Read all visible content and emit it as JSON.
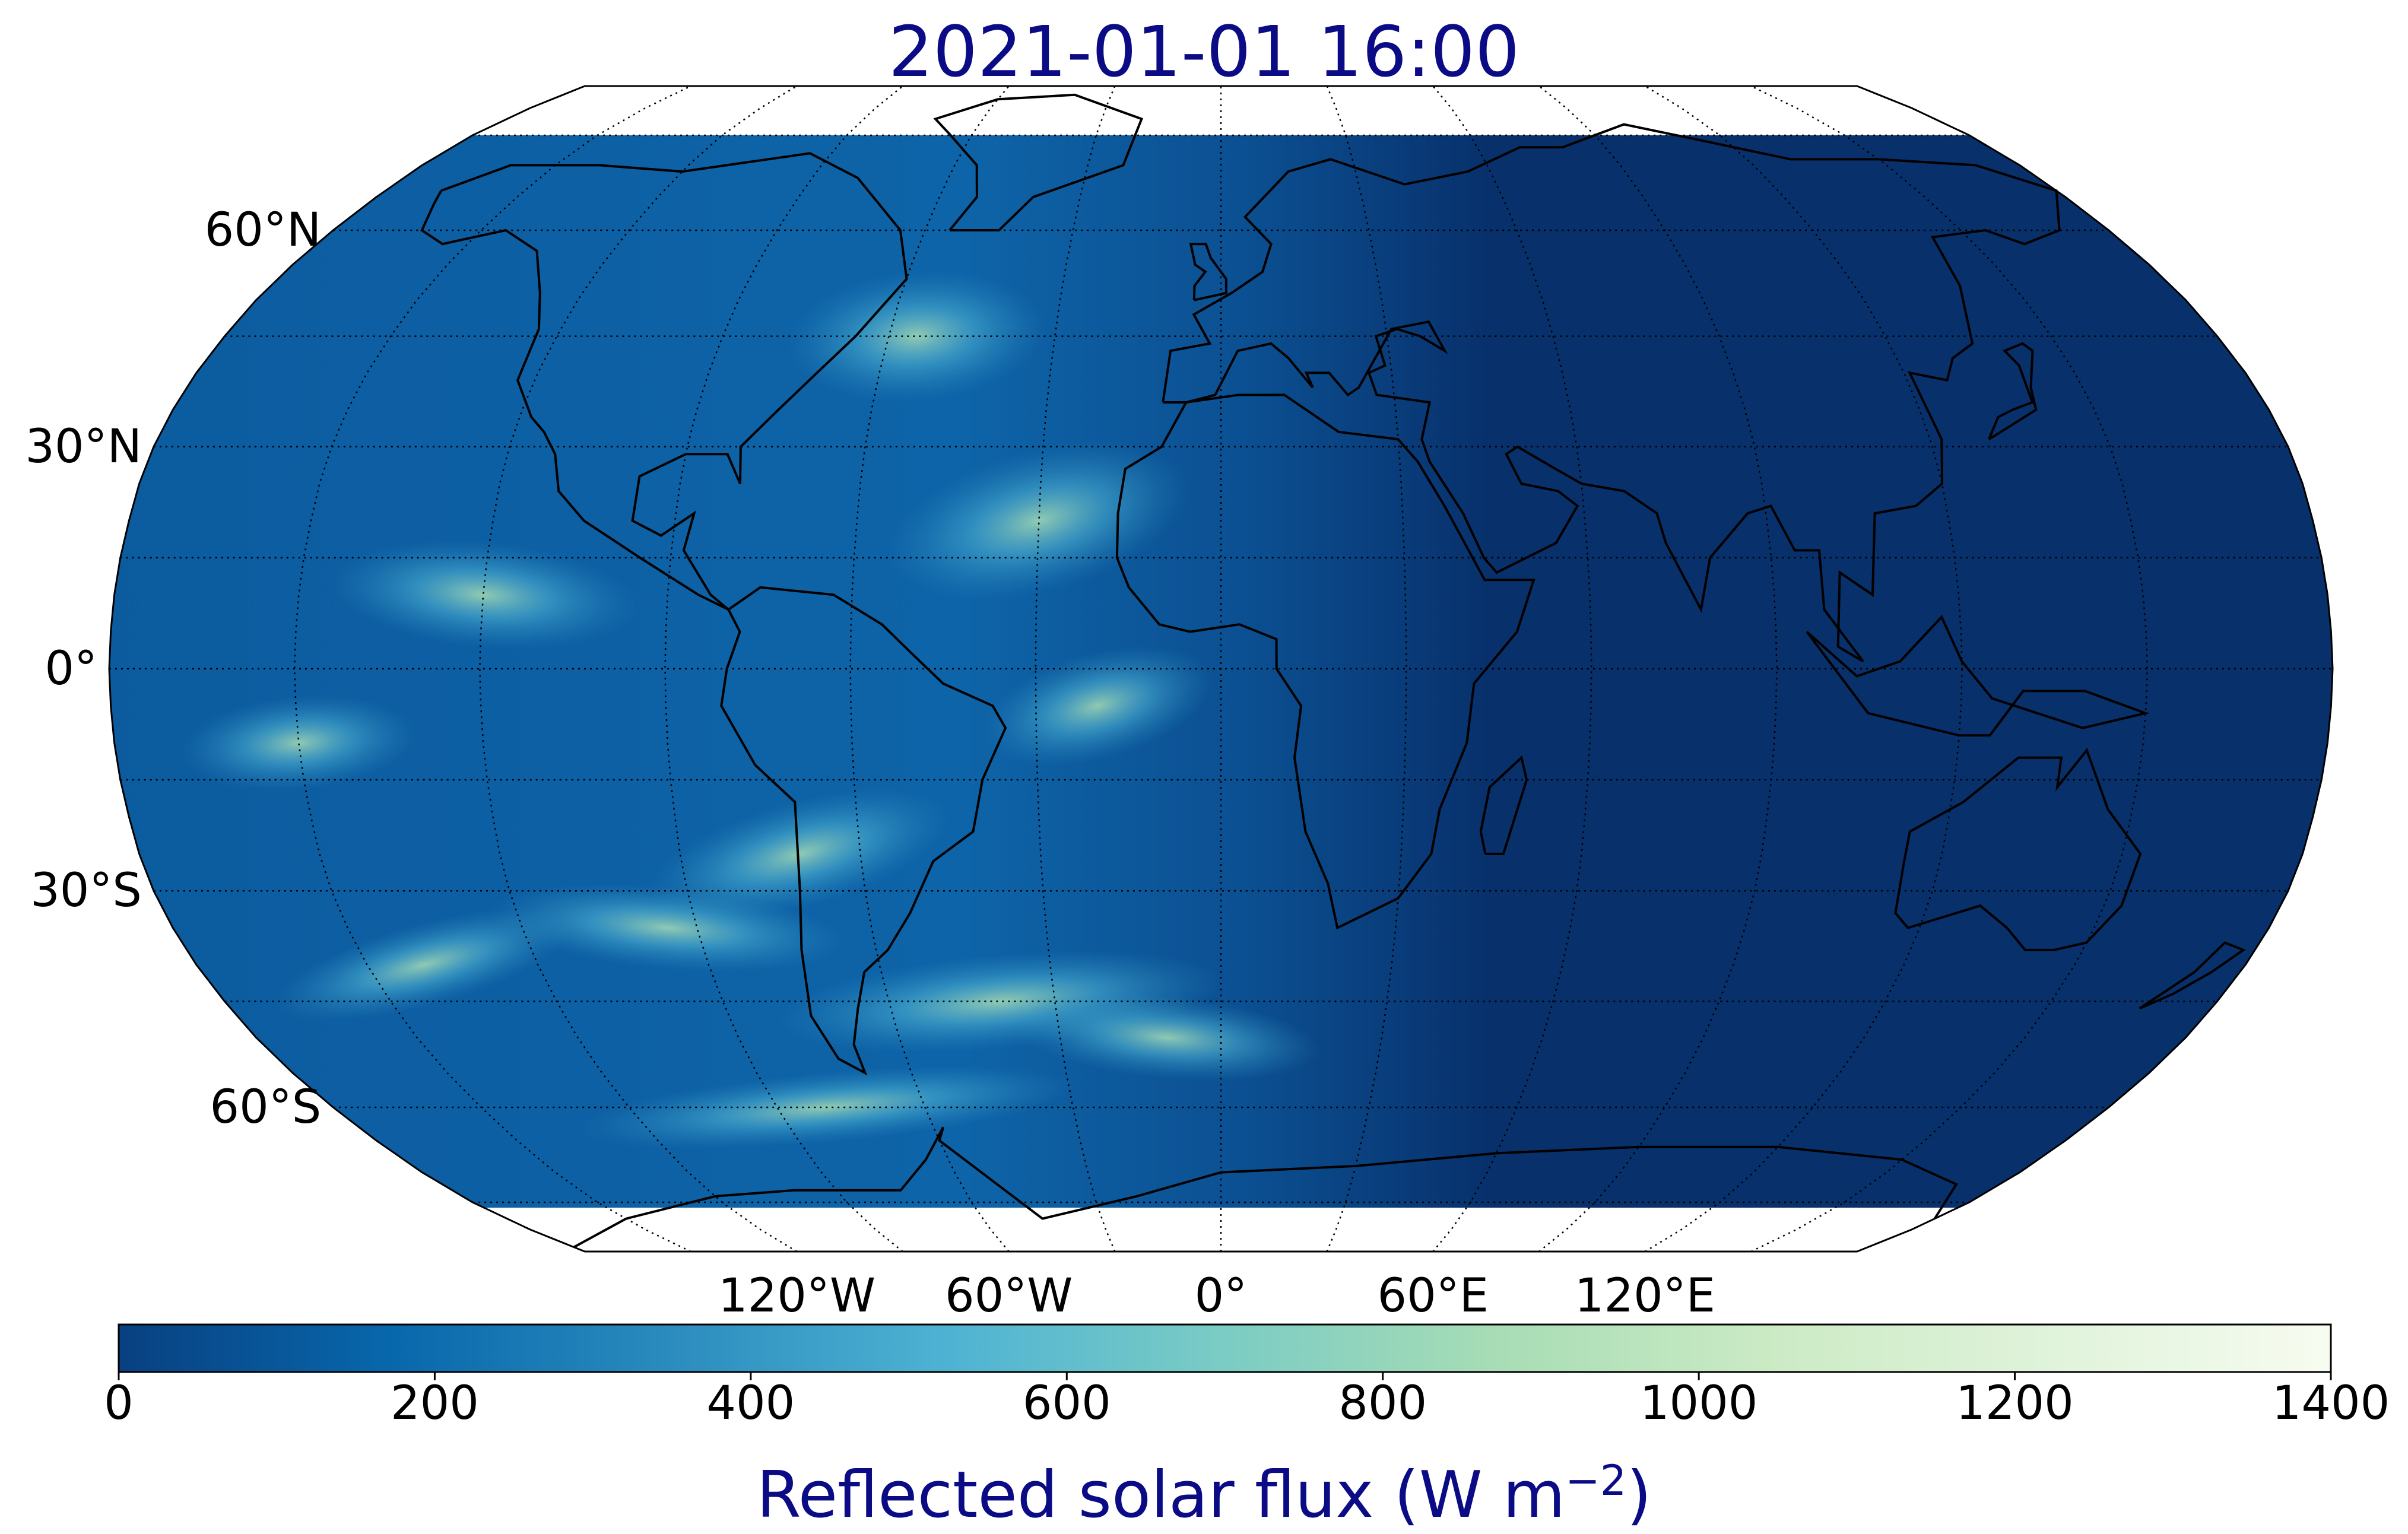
{
  "title": "2021-01-01 16:00",
  "map": {
    "projection": "robinson",
    "variable": "reflected solar flux",
    "lat_labels": [
      {
        "text": "60°N",
        "lat": 60
      },
      {
        "text": "30°N",
        "lat": 30
      },
      {
        "text": "0°",
        "lat": 0
      },
      {
        "text": "30°S",
        "lat": -30
      },
      {
        "text": "60°S",
        "lat": -60
      }
    ],
    "lon_labels": [
      {
        "text": "120°W",
        "lon": -120
      },
      {
        "text": "60°W",
        "lon": -60
      },
      {
        "text": "0°",
        "lon": 0
      },
      {
        "text": "60°E",
        "lon": 60
      },
      {
        "text": "120°E",
        "lon": 120
      }
    ],
    "gridlines": "dotted",
    "ocean_color": "#08306b",
    "no_data_color": "#ffffff"
  },
  "colorbar": {
    "label_main": "Reflected solar flux (W m",
    "label_exp": "−2",
    "label_close": ")",
    "ticks": [
      "0",
      "200",
      "400",
      "600",
      "800",
      "1000",
      "1200",
      "1400"
    ],
    "min": 0,
    "max": 1400,
    "colormap": "GnBu_r",
    "colors": [
      "#084081",
      "#0868ac",
      "#2b8cbe",
      "#4eb3d3",
      "#7bccc4",
      "#a8ddb5",
      "#ccebc5",
      "#e0f3db",
      "#f7fcf0"
    ]
  }
}
